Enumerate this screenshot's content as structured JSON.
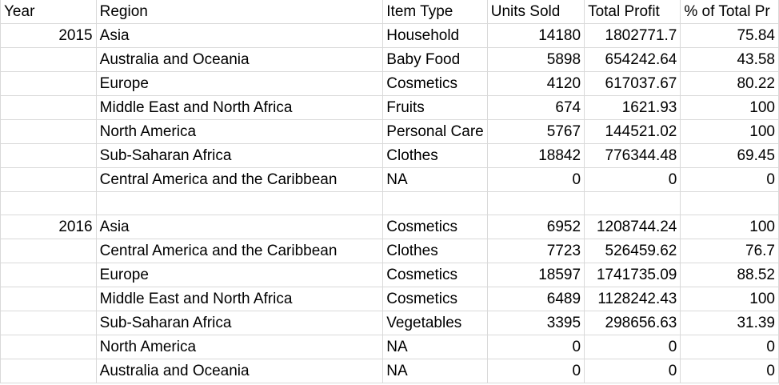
{
  "headers": [
    "Year",
    "Region",
    "Item Type",
    "Units Sold",
    "Total Profit",
    "% of Total Pr"
  ],
  "rows": [
    [
      "2015",
      "Asia",
      "Household",
      "14180",
      "1802771.7",
      "75.84"
    ],
    [
      "",
      "Australia and Oceania",
      "Baby Food",
      "5898",
      "654242.64",
      "43.58"
    ],
    [
      "",
      "Europe",
      "Cosmetics",
      "4120",
      "617037.67",
      "80.22"
    ],
    [
      "",
      "Middle East and North Africa",
      "Fruits",
      "674",
      "1621.93",
      "100"
    ],
    [
      "",
      "North America",
      "Personal Care",
      "5767",
      "144521.02",
      "100"
    ],
    [
      "",
      "Sub-Saharan Africa",
      "Clothes",
      "18842",
      "776344.48",
      "69.45"
    ],
    [
      "",
      "Central America and the Caribbean",
      "NA",
      "0",
      "0",
      "0"
    ],
    [
      "",
      "",
      "",
      "",
      "",
      ""
    ],
    [
      "2016",
      "Asia",
      "Cosmetics",
      "6952",
      "1208744.24",
      "100"
    ],
    [
      "",
      "Central America and the Caribbean",
      "Clothes",
      "7723",
      "526459.62",
      "76.7"
    ],
    [
      "",
      "Europe",
      "Cosmetics",
      "18597",
      "1741735.09",
      "88.52"
    ],
    [
      "",
      "Middle East and North Africa",
      "Cosmetics",
      "6489",
      "1128242.43",
      "100"
    ],
    [
      "",
      "Sub-Saharan Africa",
      "Vegetables",
      "3395",
      "298656.63",
      "31.39"
    ],
    [
      "",
      "North America",
      "NA",
      "0",
      "0",
      "0"
    ],
    [
      "",
      "Australia and Oceania",
      "NA",
      "0",
      "0",
      "0"
    ]
  ]
}
